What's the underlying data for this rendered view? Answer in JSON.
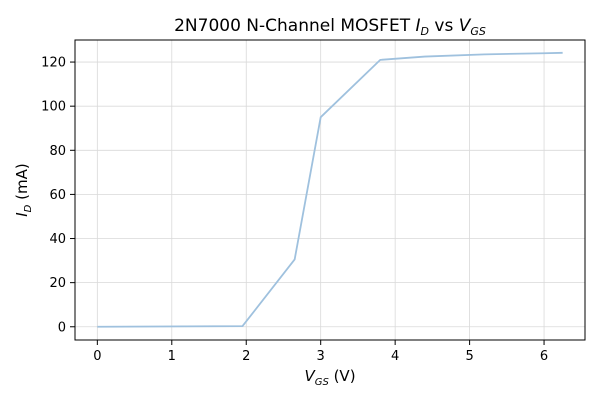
{
  "chart_data": {
    "type": "line",
    "title": {
      "prefix": "2N7000 N-Channel MOSFET ",
      "y_var": "I",
      "y_sub": "D",
      "middle": " vs ",
      "x_var": "V",
      "x_sub": "GS"
    },
    "xlabel": {
      "var": "V",
      "sub": "GS",
      "unit": " (V)"
    },
    "ylabel": {
      "var": "I",
      "sub": "D",
      "unit": " (mA)"
    },
    "xlim": [
      -0.3,
      6.55
    ],
    "ylim": [
      -6,
      130
    ],
    "x_ticks": [
      0,
      1,
      2,
      3,
      4,
      5,
      6
    ],
    "y_ticks": [
      0,
      20,
      40,
      60,
      80,
      100,
      120
    ],
    "grid": true,
    "series": [
      {
        "color": "#9fc1de",
        "x": [
          0,
          1.95,
          2.65,
          3.0,
          3.8,
          4.4,
          5.2,
          6.0,
          6.25
        ],
        "y": [
          0,
          0.3,
          30.5,
          95,
          121,
          122.5,
          123.5,
          124,
          124.2
        ]
      }
    ]
  }
}
